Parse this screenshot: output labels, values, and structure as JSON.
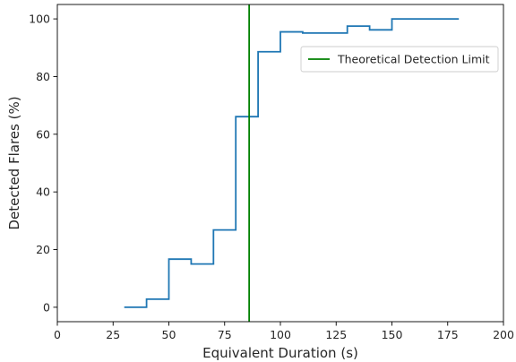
{
  "chart_data": {
    "type": "line",
    "step": "post",
    "xlabel": "Equivalent Duration (s)",
    "ylabel": "Detected Flares (%)",
    "xlim": [
      0,
      200
    ],
    "ylim": [
      -5,
      105
    ],
    "xticks": [
      0,
      25,
      50,
      75,
      100,
      125,
      150,
      175,
      200
    ],
    "yticks": [
      0,
      20,
      40,
      60,
      80,
      100
    ],
    "grid": false,
    "legend_position": "upper-right",
    "series": [
      {
        "color": "#1f77b4",
        "x": [
          30,
          40,
          50,
          60,
          70,
          80,
          90,
          100,
          110,
          120,
          130,
          140,
          150,
          160,
          170,
          180
        ],
        "y": [
          0,
          2.8,
          16.7,
          15.0,
          26.8,
          66.1,
          88.6,
          95.5,
          95.1,
          95.1,
          97.5,
          96.2,
          100,
          100,
          100,
          100
        ]
      }
    ],
    "reference_lines": [
      {
        "name": "Theoretical Detection Limit",
        "orientation": "vertical",
        "x": 86,
        "color": "#008000"
      }
    ]
  }
}
